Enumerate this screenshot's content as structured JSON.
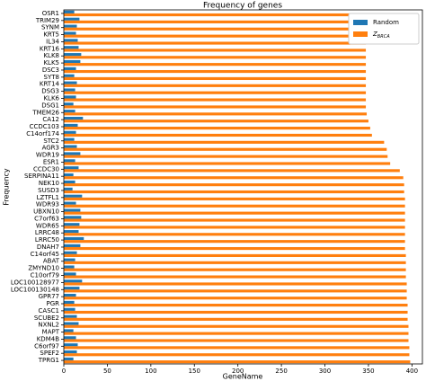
{
  "chart_data": {
    "type": "barh",
    "title": "Frequency of genes",
    "xlabel": "GeneName",
    "ylabel": "Frequency",
    "categories": [
      "OSR1",
      "TRIM29",
      "SYNM",
      "KRT5",
      "IL34",
      "KRT16",
      "KLK8",
      "KLK5",
      "DSC3",
      "SYT8",
      "KRT14",
      "DSG3",
      "KLK6",
      "DSG1",
      "TMEM26",
      "CA12",
      "CCDC103",
      "C14orf174",
      "STC2",
      "AGR3",
      "WDR19",
      "ESR1",
      "CCDC30",
      "SERPINA11",
      "NEK10",
      "SUSD3",
      "LZTFL1",
      "WDR93",
      "UBXN10",
      "C7orf63",
      "WDR65",
      "LRRC48",
      "LRRC50",
      "DNAH7",
      "C14orf45",
      "ABAT",
      "ZMYND10",
      "C10orf79",
      "LOC100128977",
      "LOC100130148",
      "GPR77",
      "PGR",
      "CASC1",
      "SCUBE2",
      "NXNL2",
      "MAPT",
      "KDM4B",
      "C6orf97",
      "SPEF2",
      "TPRG1"
    ],
    "series": [
      {
        "name": "Random",
        "color": "#1f77b4",
        "values": [
          12,
          18,
          15,
          14,
          16,
          17,
          20,
          19,
          14,
          12,
          15,
          13,
          14,
          11,
          13,
          22,
          16,
          14,
          12,
          15,
          19,
          13,
          17,
          11,
          13,
          10,
          21,
          14,
          19,
          20,
          18,
          17,
          23,
          19,
          15,
          13,
          12,
          14,
          21,
          18,
          14,
          12,
          13,
          15,
          17,
          11,
          14,
          16,
          15,
          11
        ]
      },
      {
        "name": "Z_BRCA",
        "color": "#ff7f0e",
        "values": [
          348,
          347,
          347,
          347,
          347,
          347,
          347,
          347,
          347,
          347,
          347,
          347,
          347,
          347,
          348,
          350,
          352,
          354,
          368,
          371,
          372,
          375,
          386,
          390,
          391,
          391,
          392,
          392,
          392,
          392,
          392,
          392,
          392,
          392,
          393,
          393,
          393,
          393,
          394,
          394,
          394,
          395,
          395,
          395,
          396,
          396,
          396,
          397,
          397,
          398
        ]
      }
    ],
    "xlim": [
      0,
      412
    ],
    "xticks": [
      0,
      50,
      100,
      150,
      200,
      250,
      300,
      350,
      400
    ],
    "legend": "upper right"
  }
}
